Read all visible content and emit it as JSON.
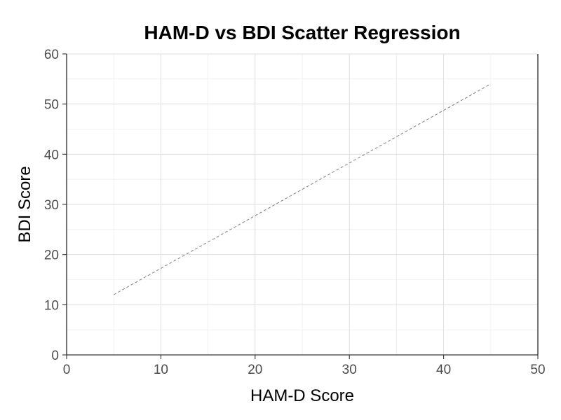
{
  "chart_data": {
    "type": "scatter",
    "title": "HAM-D vs BDI Scatter Regression",
    "xlabel": "HAM-D Score",
    "ylabel": "BDI Score",
    "xlim": [
      0,
      50
    ],
    "ylim": [
      0,
      60
    ],
    "x_ticks": [
      0,
      10,
      20,
      30,
      40,
      50
    ],
    "y_ticks": [
      0,
      10,
      20,
      30,
      40,
      50,
      60
    ],
    "grid": true,
    "series": [],
    "regression_line": {
      "x": [
        5,
        45
      ],
      "y": [
        12,
        54
      ],
      "color": "#808080",
      "style": "dashed"
    }
  }
}
